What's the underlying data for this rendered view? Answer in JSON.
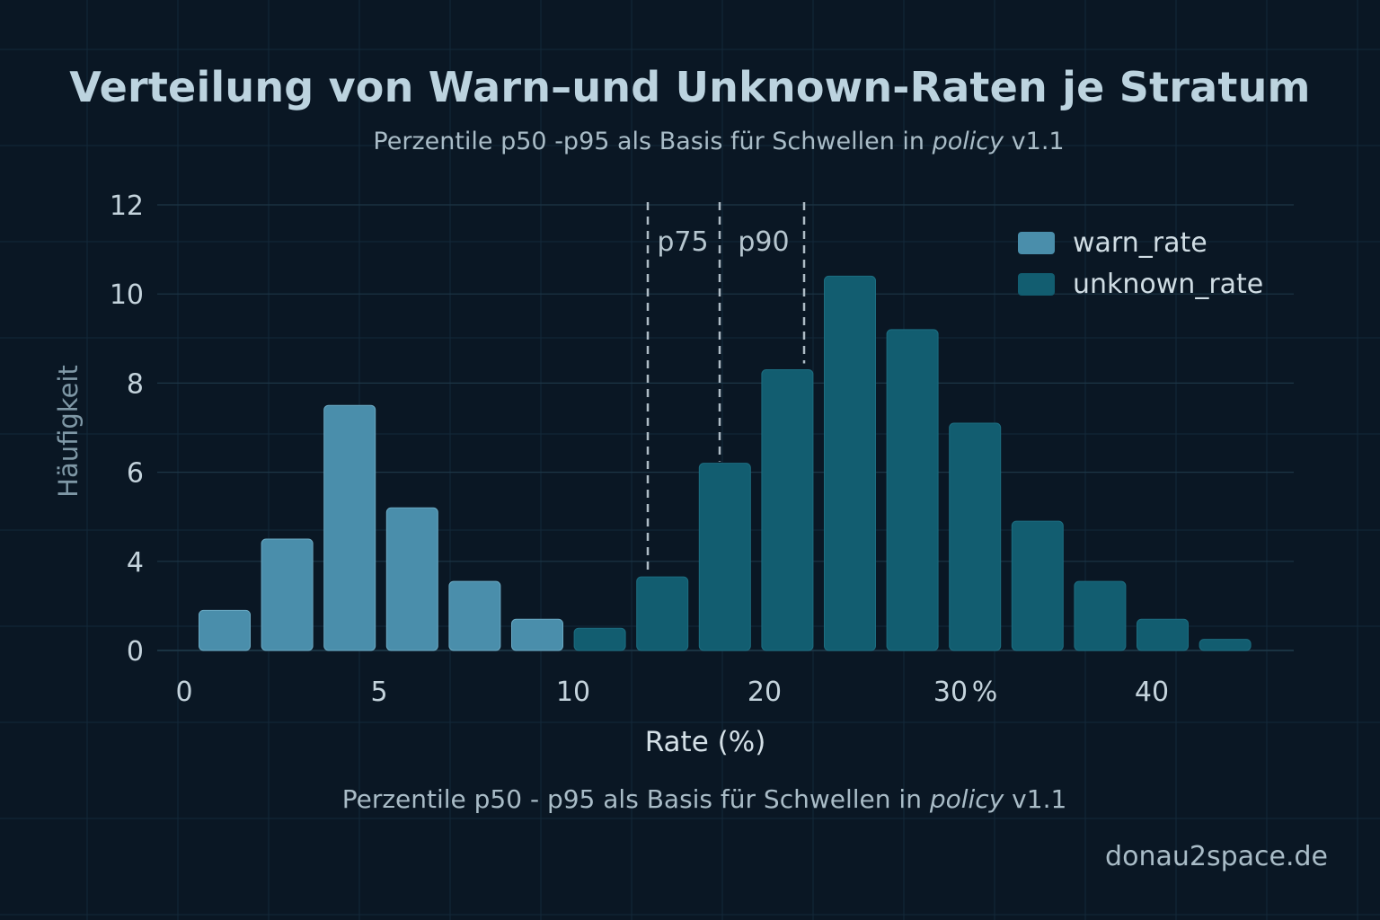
{
  "chart_data": {
    "type": "bar",
    "title": "Verteilung von Warn–und Unknown-Raten je Stratum",
    "subtitle": {
      "prefix": "Perzentile p50 -p95 als Basis für Schwellen in ",
      "italic": "policy",
      "suffix": " v1.1"
    },
    "footnote": {
      "prefix": "Perzentile p50 - p95 als Basis für Schwellen in ",
      "italic": "policy",
      "suffix": " v1.1"
    },
    "xlabel": "Rate (%)",
    "ylabel": "Häufigkeit",
    "x_ticks": [
      "0",
      "5",
      "10",
      "20",
      "30",
      "40"
    ],
    "x_tick_suffix_30": "%",
    "y_ticks": [
      "0",
      "4",
      "6",
      "8",
      "10",
      "12"
    ],
    "grid": true,
    "legend": {
      "position": "top-right",
      "entries": [
        {
          "name": "warn_rate",
          "color": "#4a8eab"
        },
        {
          "name": "unknown_rate",
          "color": "#125d70"
        }
      ]
    },
    "series": [
      {
        "name": "warn_rate",
        "color": "#4a8eab",
        "bins": [
          1,
          2,
          3,
          4,
          5,
          6
        ],
        "values": [
          1.8,
          4.5,
          7.5,
          5.2,
          3.1,
          1.4
        ]
      },
      {
        "name": "unknown_rate",
        "color": "#125d70",
        "bins": [
          7,
          8,
          9,
          10,
          11,
          12,
          13,
          14,
          15,
          16,
          17
        ],
        "values": [
          1.0,
          3.3,
          6.2,
          8.3,
          10.4,
          9.2,
          7.1,
          4.9,
          3.1,
          1.4,
          0.5
        ]
      }
    ],
    "percentile_lines": [
      {
        "name": "p50",
        "label": "",
        "bin": 8,
        "height": 3.3
      },
      {
        "name": "p75",
        "label": "p75",
        "bin": 9,
        "height": 6.2
      },
      {
        "name": "p90",
        "label": "p90",
        "bin": 10.3,
        "height": 8.4
      }
    ]
  },
  "brand": "donau2space.de"
}
